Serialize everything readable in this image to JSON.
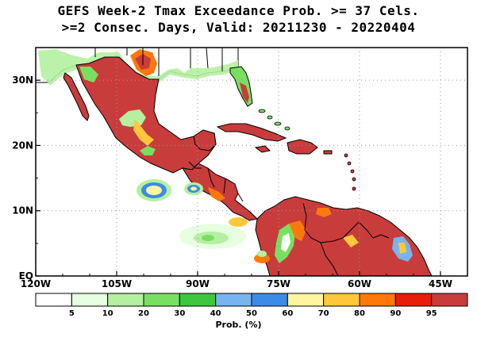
{
  "title_line1": "GEFS Week-2 Tmax Exceedance Prob. >= 37 Cels.",
  "title_line2": ">=2 Consec. Days, Valid: 20211230 - 20220404",
  "x_ticks": [
    {
      "lon": -120,
      "label": "120W"
    },
    {
      "lon": -105,
      "label": "105W"
    },
    {
      "lon": -90,
      "label": "90W"
    },
    {
      "lon": -75,
      "label": "75W"
    },
    {
      "lon": -60,
      "label": "60W"
    },
    {
      "lon": -45,
      "label": "45W"
    }
  ],
  "y_ticks": [
    {
      "lat": 30,
      "label": "30N"
    },
    {
      "lat": 20,
      "label": "20N"
    },
    {
      "lat": 10,
      "label": "10N"
    },
    {
      "lat": 0,
      "label": "EQ"
    }
  ],
  "map_extent": {
    "lon_min": -120,
    "lon_max": -40,
    "lat_min": 0,
    "lat_max": 35
  },
  "legend": {
    "title": "Prob. (%)",
    "breaks": [
      "5",
      "10",
      "20",
      "30",
      "40",
      "50",
      "60",
      "70",
      "80",
      "90",
      "95"
    ],
    "colors": [
      "#ffffff",
      "#e6ffe0",
      "#b4f0a0",
      "#78e060",
      "#3cc83c",
      "#78b4f0",
      "#3c8ce6",
      "#fff5a0",
      "#ffc83c",
      "#ff780a",
      "#e61e0a",
      "#c83c3c"
    ]
  },
  "colors": {
    "high": "#c83c3c",
    "orange": "#ff780a",
    "yellow": "#ffc83c",
    "green": "#78e060",
    "lightgreen": "#b4f0a0",
    "blue": "#3c8ce6",
    "coast": "#000000",
    "grid": "#9a9a9a"
  }
}
